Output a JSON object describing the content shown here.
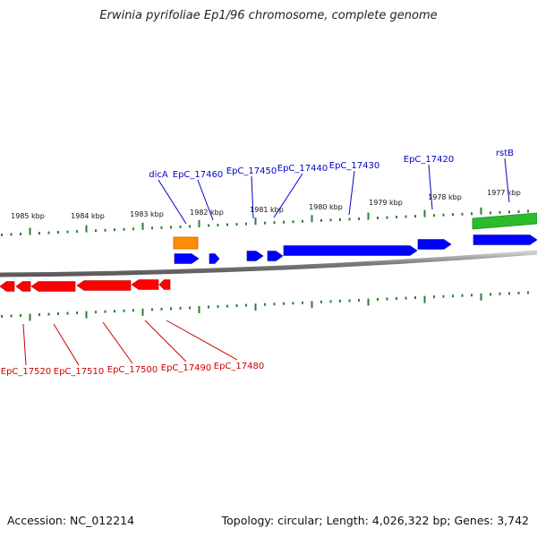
{
  "title": "Erwinia pyrifoliae Ep1/96 chromosome, complete genome",
  "footer": {
    "accession": "Accession: NC_012214",
    "topology": "Topology: circular; Length: 4,026,322 bp; Genes: 3,742"
  },
  "colors": {
    "backbone": "#8c8c8c",
    "ticks": "#2e7d32",
    "forward_gene": "#0000ff",
    "reverse_gene": "#ff0000",
    "rna_gene": "#ff8c00",
    "feature_band": "#22bb22",
    "forward_label": "#0000cc",
    "reverse_label": "#cc0000"
  },
  "scale_labels": [
    "1985 kbp",
    "1984 kbp",
    "1983 kbp",
    "1982 kbp",
    "1981 kbp",
    "1980 kbp",
    "1979 kbp",
    "1978 kbp",
    "1977 kbp"
  ],
  "forward_labels": [
    "dicA",
    "EpC_17460",
    "EpC_17450",
    "EpC_17440",
    "EpC_17430",
    "EpC_17420",
    "rstB"
  ],
  "reverse_labels": [
    "EpC_17520",
    "EpC_17510",
    "EpC_17500",
    "EpC_17490",
    "EpC_17480"
  ]
}
